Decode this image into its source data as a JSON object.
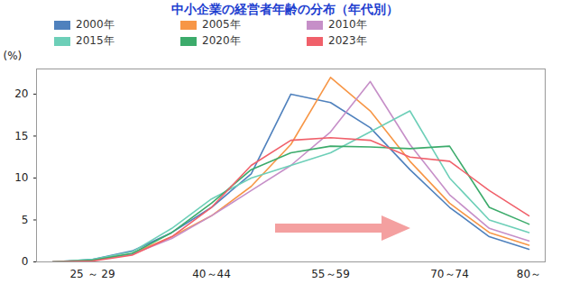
{
  "chart_data": {
    "type": "line",
    "title": "中小企業の経営者年齢の分布（年代別）",
    "y_label": "(%)",
    "categories": [
      null,
      "25 ～ 29",
      null,
      null,
      "40～44",
      null,
      null,
      "55～59",
      null,
      null,
      "70～74",
      null,
      "80～"
    ],
    "series": [
      {
        "name": "2000年",
        "color": "#4f81bd",
        "values": [
          0,
          0.3,
          1.3,
          3.5,
          6.5,
          10.5,
          20,
          19,
          16,
          11,
          6.5,
          3,
          1.5
        ]
      },
      {
        "name": "2005年",
        "color": "#f79646",
        "values": [
          0,
          0.2,
          1,
          3,
          5.5,
          9,
          14,
          22,
          18,
          12,
          7,
          3.5,
          2
        ]
      },
      {
        "name": "2010年",
        "color": "#c68fc8",
        "values": [
          0,
          0.2,
          0.9,
          2.8,
          5.5,
          8.5,
          11.5,
          15.5,
          21.5,
          14,
          8,
          4,
          2.5
        ]
      },
      {
        "name": "2015年",
        "color": "#6dcfb8",
        "values": [
          0,
          0.3,
          1.2,
          4,
          7.5,
          10,
          11.5,
          13,
          15.5,
          18,
          10,
          5,
          3.5
        ]
      },
      {
        "name": "2020年",
        "color": "#3cab6b",
        "values": [
          0,
          0.2,
          1,
          3.5,
          7,
          11,
          13,
          13.8,
          13.7,
          13.5,
          13.8,
          6.5,
          4.5
        ]
      },
      {
        "name": "2023年",
        "color": "#f0606a",
        "values": [
          0,
          0.1,
          0.8,
          3,
          6.5,
          11.5,
          14.5,
          14.8,
          14.5,
          12.5,
          12,
          8.5,
          5.5
        ]
      }
    ],
    "ylim": [
      0,
      23
    ],
    "yticks": [
      0,
      5,
      10,
      15,
      20
    ],
    "grid": false,
    "legend": "top"
  }
}
